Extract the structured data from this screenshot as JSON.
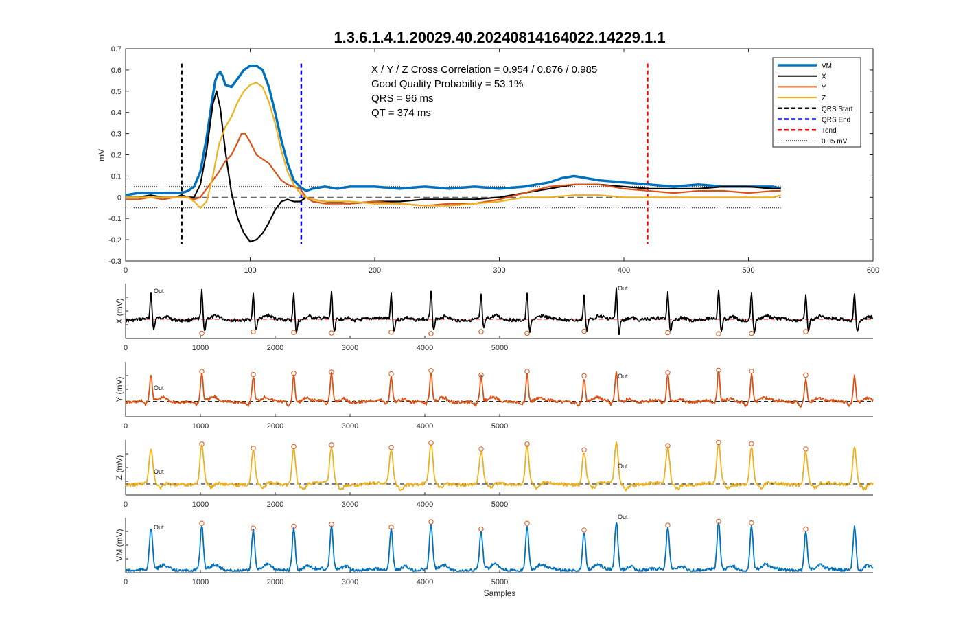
{
  "figure": {
    "title": "1.3.6.1.4.1.20029.40.20240814164022.14229.1.1"
  },
  "annotations": {
    "line1": "X / Y / Z Cross Correlation = 0.954 / 0.876 / 0.985",
    "line2": "Good Quality Probability = 53.1%",
    "line3": "QRS = 96 ms",
    "line4": "QT = 374 ms"
  },
  "legend": {
    "items": [
      {
        "label": "VM",
        "color": "#0072BD",
        "style": "solid-thick"
      },
      {
        "label": "X",
        "color": "#000000",
        "style": "solid"
      },
      {
        "label": "Y",
        "color": "#D95319",
        "style": "solid"
      },
      {
        "label": "Z",
        "color": "#EDB120",
        "style": "solid"
      },
      {
        "label": "QRS Start",
        "color": "#000000",
        "style": "dashed"
      },
      {
        "label": "QRS End",
        "color": "#0000FF",
        "style": "dashed"
      },
      {
        "label": "Tend",
        "color": "#FF0000",
        "style": "dashed"
      },
      {
        "label": "0.05 mV",
        "color": "#000000",
        "style": "dotted"
      }
    ]
  },
  "outlier_label": "Out",
  "chart_data": [
    {
      "type": "line",
      "title": "1.3.6.1.4.1.20029.40.20240814164022.14229.1.1",
      "xlabel": "",
      "ylabel": "mV",
      "xlim": [
        0,
        600
      ],
      "ylim": [
        -0.3,
        0.7
      ],
      "xticks": [
        0,
        100,
        200,
        300,
        400,
        500,
        600
      ],
      "yticks": [
        -0.3,
        -0.2,
        -0.1,
        0,
        0.1,
        0.2,
        0.3,
        0.4,
        0.5,
        0.6,
        0.7
      ],
      "markers": {
        "qrs_start": 45,
        "qrs_end": 141,
        "tend": 419,
        "threshold": 0.05
      },
      "series": [
        {
          "name": "VM",
          "color": "#0072BD",
          "x": [
            0,
            10,
            20,
            30,
            40,
            45,
            50,
            55,
            60,
            65,
            70,
            72,
            74,
            76,
            78,
            80,
            85,
            90,
            95,
            100,
            105,
            110,
            115,
            120,
            125,
            130,
            135,
            140,
            145,
            150,
            160,
            170,
            180,
            200,
            220,
            240,
            260,
            280,
            300,
            320,
            340,
            350,
            360,
            370,
            380,
            400,
            420,
            440,
            460,
            480,
            500,
            520,
            526
          ],
          "y": [
            0.01,
            0.02,
            0.02,
            0.02,
            0.02,
            0.02,
            0.03,
            0.05,
            0.12,
            0.28,
            0.48,
            0.55,
            0.58,
            0.59,
            0.57,
            0.53,
            0.52,
            0.56,
            0.6,
            0.62,
            0.62,
            0.6,
            0.52,
            0.4,
            0.27,
            0.16,
            0.08,
            0.05,
            0.03,
            0.04,
            0.05,
            0.04,
            0.05,
            0.05,
            0.04,
            0.05,
            0.04,
            0.05,
            0.04,
            0.05,
            0.07,
            0.09,
            0.1,
            0.09,
            0.08,
            0.07,
            0.06,
            0.05,
            0.06,
            0.05,
            0.05,
            0.05,
            0.04
          ]
        },
        {
          "name": "X",
          "color": "#000000",
          "x": [
            0,
            10,
            20,
            30,
            40,
            45,
            50,
            55,
            60,
            65,
            70,
            73,
            76,
            80,
            85,
            90,
            95,
            100,
            105,
            110,
            115,
            120,
            125,
            130,
            135,
            140,
            145,
            150,
            160,
            180,
            200,
            220,
            240,
            260,
            280,
            300,
            320,
            340,
            360,
            380,
            400,
            420,
            440,
            460,
            480,
            500,
            520,
            526
          ],
          "y": [
            0.0,
            0.0,
            0.01,
            0.0,
            0.0,
            0.01,
            0.0,
            0.0,
            0.06,
            0.22,
            0.44,
            0.5,
            0.42,
            0.22,
            0.02,
            -0.1,
            -0.17,
            -0.21,
            -0.2,
            -0.17,
            -0.12,
            -0.06,
            -0.02,
            -0.01,
            -0.02,
            -0.02,
            0.0,
            -0.01,
            -0.02,
            -0.03,
            -0.02,
            -0.02,
            -0.01,
            -0.01,
            -0.01,
            0.0,
            0.02,
            0.04,
            0.06,
            0.06,
            0.05,
            0.04,
            0.04,
            0.04,
            0.05,
            0.05,
            0.04,
            0.04
          ]
        },
        {
          "name": "Y",
          "color": "#D95319",
          "x": [
            0,
            10,
            20,
            30,
            40,
            45,
            50,
            55,
            60,
            65,
            70,
            75,
            80,
            85,
            90,
            93,
            96,
            100,
            105,
            110,
            115,
            120,
            125,
            130,
            135,
            140,
            145,
            150,
            160,
            180,
            200,
            220,
            240,
            260,
            280,
            300,
            320,
            340,
            360,
            380,
            400,
            420,
            440,
            460,
            480,
            500,
            520,
            526
          ],
          "y": [
            -0.01,
            -0.01,
            0.0,
            -0.01,
            0.0,
            0.0,
            0.0,
            -0.01,
            0.0,
            0.04,
            0.08,
            0.12,
            0.17,
            0.2,
            0.26,
            0.3,
            0.3,
            0.26,
            0.2,
            0.18,
            0.16,
            0.12,
            0.08,
            0.06,
            0.05,
            0.04,
            0.0,
            -0.02,
            -0.03,
            -0.03,
            -0.02,
            -0.03,
            -0.04,
            -0.03,
            -0.03,
            -0.01,
            0.02,
            0.05,
            0.06,
            0.06,
            0.04,
            0.03,
            0.02,
            0.03,
            0.03,
            0.02,
            0.03,
            0.03
          ]
        },
        {
          "name": "Z",
          "color": "#EDB120",
          "x": [
            0,
            10,
            20,
            30,
            40,
            45,
            50,
            55,
            60,
            65,
            70,
            75,
            80,
            85,
            90,
            95,
            100,
            105,
            110,
            115,
            120,
            125,
            130,
            135,
            140,
            145,
            150,
            160,
            180,
            200,
            220,
            240,
            260,
            280,
            300,
            320,
            340,
            360,
            380,
            400,
            420,
            440,
            460,
            480,
            500,
            520,
            526
          ],
          "y": [
            0.0,
            0.0,
            0.0,
            0.0,
            0.0,
            0.0,
            0.0,
            -0.02,
            -0.05,
            -0.02,
            0.1,
            0.25,
            0.33,
            0.38,
            0.45,
            0.5,
            0.53,
            0.54,
            0.52,
            0.45,
            0.35,
            0.22,
            0.12,
            0.06,
            0.02,
            0.0,
            -0.01,
            -0.02,
            -0.02,
            -0.03,
            -0.03,
            -0.04,
            -0.04,
            -0.03,
            -0.02,
            0.0,
            0.0,
            0.01,
            0.01,
            0.0,
            0.0,
            0.0,
            0.0,
            0.0,
            0.0,
            0.0,
            0.01
          ]
        }
      ]
    },
    {
      "type": "line",
      "xlabel": "",
      "ylabel": "X (mV)",
      "xlim": [
        0,
        6000
      ],
      "xticks": [
        0,
        1000,
        2000,
        3000,
        4000,
        5000
      ],
      "color": "#000000",
      "baseline": "red-dashed",
      "beats": [
        360,
        1030,
        1720,
        2260,
        2760,
        3550,
        4100,
        4780,
        5430,
        6160,
        6580,
        7240,
        7980,
        8430,
        9100,
        9800
      ],
      "outliers": [
        360,
        6580
      ],
      "peak_value": 1.0,
      "trough_value": -0.45,
      "circle_marks": "trough"
    },
    {
      "type": "line",
      "xlabel": "",
      "ylabel": "Y (mV)",
      "xlim": [
        0,
        6000
      ],
      "xticks": [
        0,
        1000,
        2000,
        3000,
        4000,
        5000
      ],
      "color": "#D95319",
      "baseline": "black-dashed",
      "beats": [
        360,
        1030,
        1720,
        2260,
        2760,
        3550,
        4100,
        4780,
        5430,
        6160,
        6580,
        7240,
        7980,
        8430,
        9100,
        9800
      ],
      "outliers": [
        360,
        6580
      ],
      "peak_value": 0.9,
      "trough_value": -0.2,
      "circle_marks": "peak"
    },
    {
      "type": "line",
      "xlabel": "",
      "ylabel": "Z (mV)",
      "xlim": [
        0,
        6000
      ],
      "xticks": [
        0,
        1000,
        2000,
        3000,
        4000,
        5000
      ],
      "color": "#EDB120",
      "baseline": "black-dashed",
      "beats": [
        360,
        1030,
        1720,
        2260,
        2760,
        3550,
        4100,
        4780,
        5430,
        6160,
        6580,
        7240,
        7980,
        8430,
        9100,
        9800
      ],
      "outliers": [
        360,
        6580
      ],
      "peak_value": 1.0,
      "trough_value": -0.1,
      "circle_marks": "peak"
    },
    {
      "type": "line",
      "xlabel": "Samples",
      "ylabel": "VM (mV)",
      "xlim": [
        0,
        6000
      ],
      "xticks": [
        0,
        1000,
        2000,
        3000,
        4000,
        5000
      ],
      "color": "#0072BD",
      "baseline": "none",
      "beats": [
        360,
        1030,
        1720,
        2260,
        2760,
        3550,
        4100,
        4780,
        5430,
        6160,
        6580,
        7240,
        7980,
        8430,
        9100,
        9800
      ],
      "outliers": [
        360,
        6580
      ],
      "peak_value": 1.0,
      "trough_value": 0.0,
      "circle_marks": "peak"
    }
  ]
}
